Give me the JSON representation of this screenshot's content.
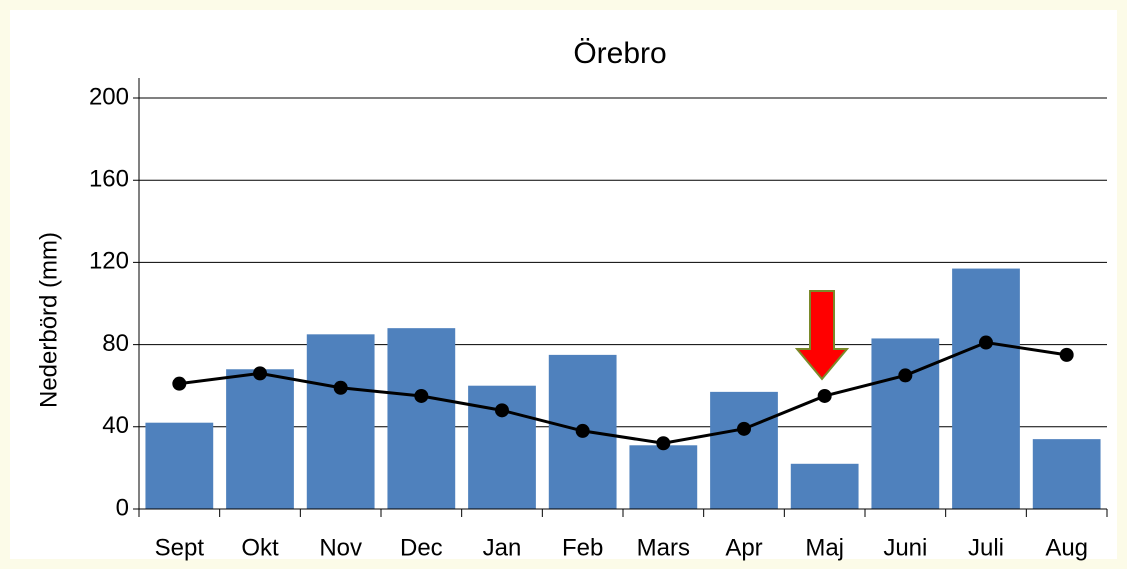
{
  "chart_data": {
    "type": "bar",
    "title": "Örebro",
    "y_label": "Nederbörd (mm)",
    "categories": [
      "Sept",
      "Okt",
      "Nov",
      "Dec",
      "Jan",
      "Feb",
      "Mars",
      "Apr",
      "Maj",
      "Juni",
      "Juli",
      "Aug"
    ],
    "series": [
      {
        "type": "bar",
        "color": "#4f81bd",
        "values": [
          42,
          68,
          85,
          88,
          60,
          75,
          31,
          57,
          22,
          83,
          117,
          34
        ]
      },
      {
        "type": "line",
        "color": "#000000",
        "values": [
          61,
          66,
          59,
          55,
          48,
          38,
          32,
          39,
          55,
          65,
          81,
          75
        ]
      }
    ],
    "ylim": [
      0,
      200
    ],
    "yticks": [
      0,
      40,
      80,
      120,
      160,
      200
    ],
    "grid": true
  }
}
